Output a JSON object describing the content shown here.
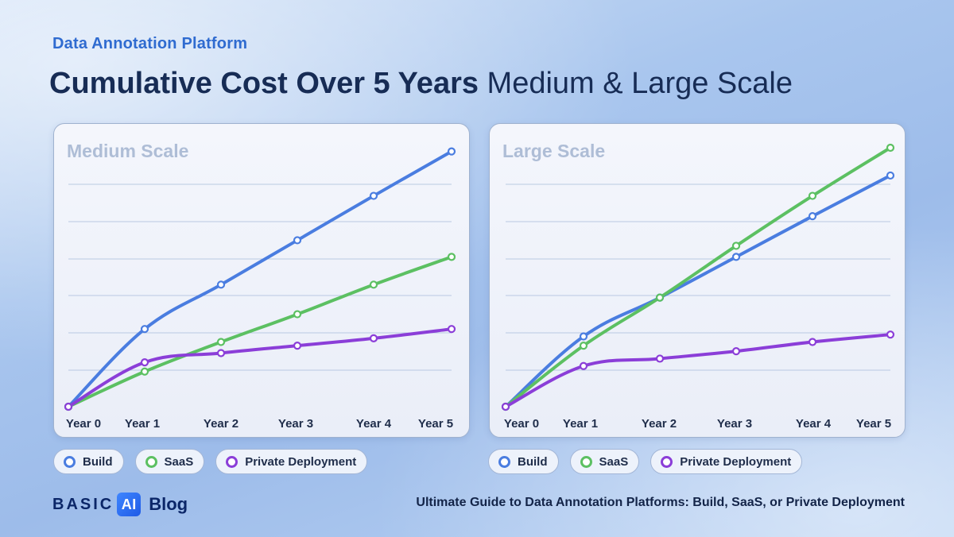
{
  "brand": "Data Annotation Platform",
  "headline": {
    "bold": "Cumulative Cost Over 5 Years",
    "normal": " Medium & Large Scale"
  },
  "colors": {
    "build": "#4a7de0",
    "saas": "#5cc062",
    "private": "#8b3ed8",
    "grid": "#b9c9e2",
    "panel_title": "#aebdd6",
    "axis_text": "#1f2d4a"
  },
  "legend": {
    "build": "Build",
    "saas": "SaaS",
    "private": "Private Deployment"
  },
  "footer": {
    "logo_word": "BASIC",
    "logo_badge": "AI",
    "blog": "Blog",
    "text": "Ultimate Guide to Data Annotation Platforms: Build, SaaS, or Private Deployment"
  },
  "chart_data": [
    {
      "type": "line",
      "title": "Medium Scale",
      "x": [
        "Year 0",
        "Year 1",
        "Year 2",
        "Year 3",
        "Year 4",
        "Year 5"
      ],
      "ylim": [
        0,
        7
      ],
      "y_ticks_labeled": false,
      "grid": true,
      "series": [
        {
          "name": "Build",
          "color_key": "build",
          "values": [
            0,
            2.1,
            3.3,
            4.5,
            5.7,
            6.9
          ]
        },
        {
          "name": "SaaS",
          "color_key": "saas",
          "values": [
            0,
            0.95,
            1.75,
            2.5,
            3.3,
            4.05
          ]
        },
        {
          "name": "Private Deployment",
          "color_key": "private",
          "values": [
            0,
            1.2,
            1.45,
            1.65,
            1.85,
            2.1
          ]
        }
      ]
    },
    {
      "type": "line",
      "title": "Large Scale",
      "x": [
        "Year 0",
        "Year 1",
        "Year 2",
        "Year 3",
        "Year 4",
        "Year 5"
      ],
      "ylim": [
        0,
        7
      ],
      "y_ticks_labeled": false,
      "grid": true,
      "series": [
        {
          "name": "Build",
          "color_key": "build",
          "values": [
            0,
            1.9,
            2.95,
            4.05,
            5.15,
            6.25
          ]
        },
        {
          "name": "SaaS",
          "color_key": "saas",
          "values": [
            0,
            1.65,
            2.95,
            4.35,
            5.7,
            7.0
          ]
        },
        {
          "name": "Private Deployment",
          "color_key": "private",
          "values": [
            0,
            1.1,
            1.3,
            1.5,
            1.75,
            1.95
          ]
        }
      ]
    }
  ]
}
